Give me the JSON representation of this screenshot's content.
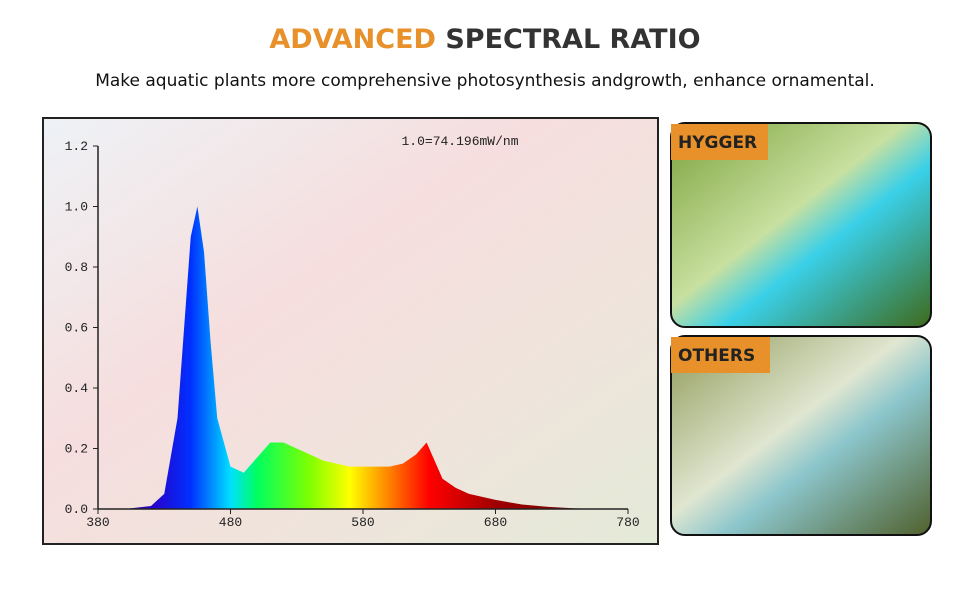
{
  "header": {
    "title_highlight": "ADVANCED",
    "title_rest": "SPECTRAL RATIO",
    "subtitle": "Make aquatic plants more comprehensive photosynthesis andgrowth, enhance ornamental."
  },
  "panels": [
    {
      "label": "HYGGER"
    },
    {
      "label": "OTHERS"
    }
  ],
  "chart_data": {
    "type": "area",
    "annotation": "1.0=74.196mW/nm",
    "x": [
      380,
      400,
      420,
      430,
      440,
      445,
      450,
      455,
      460,
      465,
      470,
      480,
      490,
      500,
      510,
      520,
      530,
      540,
      550,
      560,
      570,
      580,
      590,
      600,
      610,
      620,
      628,
      635,
      640,
      650,
      660,
      680,
      700,
      720,
      740,
      760,
      780
    ],
    "values": [
      0,
      0,
      0.01,
      0.05,
      0.3,
      0.6,
      0.9,
      1.0,
      0.85,
      0.55,
      0.3,
      0.14,
      0.12,
      0.17,
      0.22,
      0.22,
      0.2,
      0.18,
      0.16,
      0.15,
      0.14,
      0.14,
      0.14,
      0.14,
      0.15,
      0.18,
      0.22,
      0.15,
      0.1,
      0.07,
      0.05,
      0.03,
      0.015,
      0.007,
      0.002,
      0,
      0
    ],
    "xlim": [
      380,
      780
    ],
    "xticks": [
      380,
      480,
      580,
      680,
      780
    ],
    "ylim": [
      0,
      1.2
    ],
    "yticks": [
      {
        "value": 0,
        "label": "0.0"
      },
      0.2,
      0.4,
      0.6,
      0.8,
      {
        "value": 1,
        "label": "1.0"
      },
      1.2
    ]
  }
}
